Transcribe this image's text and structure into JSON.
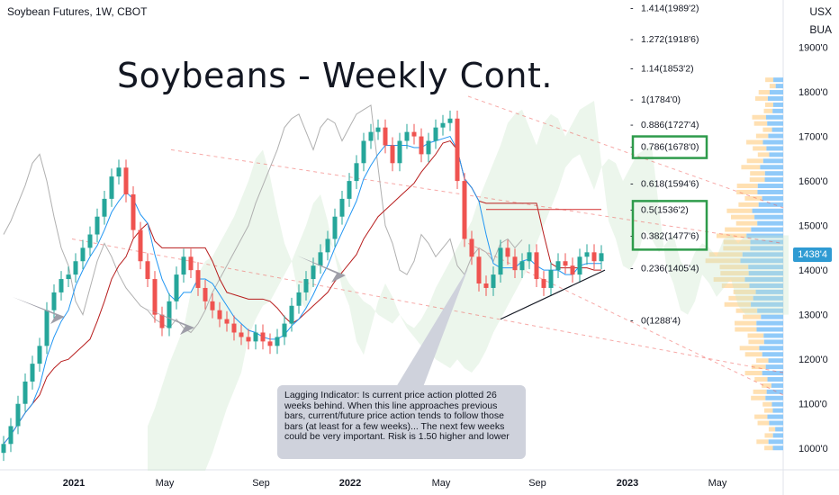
{
  "header": {
    "symbol_line": "Soybean Futures, 1W, CBOT",
    "annotation_title": "Soybeans - Weekly Cont."
  },
  "price_scale": {
    "unit_top": "USX",
    "unit_bottom": "BUA",
    "current_price_label": "1438'4"
  },
  "callout": {
    "text": "Lagging Indicator:  Is current price action plotted 26 weeks behind.  When this line approaches previous bars, current/future price action tends to follow those bars (at least for a few weeks)... The next few weeks could be very important. Risk is 1.50 higher and lower"
  },
  "colors": {
    "up": "#26a69a",
    "down": "#ef5350",
    "base_line": "#b71c1c",
    "conversion_line": "#2196f3",
    "lagging_line": "#b0b0b0",
    "cloud_bull": "#c8e6c9",
    "cloud_bear": "#ffcdd2",
    "fib_box": "#2e9b4b",
    "volume_profile": "#90caf9",
    "volume_profile_alt": "#ffe0b2",
    "callout_bg": "#cfd2dc"
  },
  "chart_data": {
    "type": "candlestick",
    "title": "Soybean Futures, 1W, CBOT",
    "y_unit": "USX/BUA",
    "ylim": [
      950,
      2000
    ],
    "y_ticks": [
      "1000'0",
      "1100'0",
      "1200'0",
      "1300'0",
      "1400'0",
      "1500'0",
      "1600'0",
      "1700'0",
      "1800'0",
      "1900'0"
    ],
    "x_ticks": [
      "2021",
      "May",
      "Sep",
      "2022",
      "May",
      "Sep",
      "2023",
      "May"
    ],
    "fib_levels": [
      {
        "ratio": "1.414",
        "price": "1989'2"
      },
      {
        "ratio": "1.272",
        "price": "1918'6"
      },
      {
        "ratio": "1.14",
        "price": "1853'2"
      },
      {
        "ratio": "1",
        "price": "1784'0"
      },
      {
        "ratio": "0.886",
        "price": "1727'4"
      },
      {
        "ratio": "0.786",
        "price": "1678'0"
      },
      {
        "ratio": "0.618",
        "price": "1594'6"
      },
      {
        "ratio": "0.5",
        "price": "1536'2"
      },
      {
        "ratio": "0.382",
        "price": "1477'6"
      },
      {
        "ratio": "0.236",
        "price": "1405'4"
      },
      {
        "ratio": "0",
        "price": "1288'4"
      }
    ],
    "highlighted_fibs": [
      "0.786",
      "0.5",
      "0.382"
    ],
    "close_series": [
      1010,
      1050,
      1100,
      1150,
      1190,
      1230,
      1310,
      1350,
      1380,
      1390,
      1420,
      1450,
      1480,
      1520,
      1560,
      1610,
      1630,
      1570,
      1490,
      1420,
      1380,
      1300,
      1270,
      1330,
      1390,
      1430,
      1400,
      1360,
      1330,
      1310,
      1290,
      1280,
      1260,
      1250,
      1240,
      1260,
      1240,
      1230,
      1250,
      1280,
      1320,
      1350,
      1380,
      1410,
      1440,
      1470,
      1520,
      1560,
      1600,
      1640,
      1690,
      1710,
      1720,
      1680,
      1640,
      1690,
      1710,
      1700,
      1660,
      1690,
      1720,
      1730,
      1740,
      1600,
      1470,
      1430,
      1370,
      1360,
      1390,
      1450,
      1430,
      1400,
      1420,
      1440,
      1380,
      1360,
      1400,
      1420,
      1410,
      1390,
      1430,
      1440,
      1420,
      1438
    ]
  }
}
